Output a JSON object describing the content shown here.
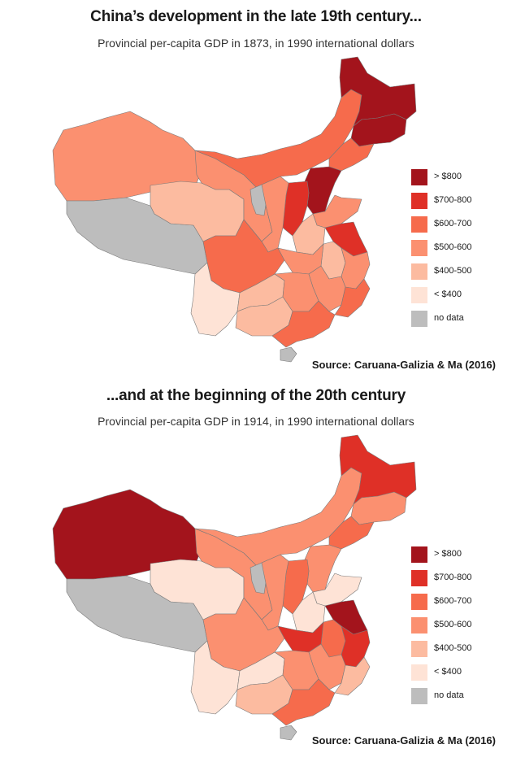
{
  "colors": {
    "gt800": "#a3141c",
    "r700_800": "#df3027",
    "r600_700": "#f66b4c",
    "r500_600": "#fb9070",
    "r400_500": "#fcbba0",
    "lt400": "#fee3d6",
    "no_data": "#bdbdbd",
    "border": "#7a7a7a"
  },
  "legend": [
    {
      "key": "gt800",
      "label": "> $800"
    },
    {
      "key": "r700_800",
      "label": "$700-800"
    },
    {
      "key": "r600_700",
      "label": "$600-700"
    },
    {
      "key": "r500_600",
      "label": "$500-600"
    },
    {
      "key": "r400_500",
      "label": "$400-500"
    },
    {
      "key": "lt400",
      "label": "< $400"
    },
    {
      "key": "no_data",
      "label": "no data"
    }
  ],
  "panels": [
    {
      "title": "China’s development in the late 19th century...",
      "subtitle": "Provincial per-capita GDP in 1873, in 1990 international dollars",
      "source": "Source: Caruana-Galizia & Ma (2016)",
      "regions": {
        "xinjiang": "r500_600",
        "tibet": "no_data",
        "qinghai": "r400_500",
        "gansu": "r500_600",
        "inner_mongolia": "r600_700",
        "heilongjiang": "gt800",
        "jilin": "gt800",
        "liaoning": "r600_700",
        "hebei": "gt800",
        "shanxi": "r700_800",
        "ningxia": "no_data",
        "shaanxi": "r500_600",
        "shandong": "r500_600",
        "henan": "r400_500",
        "jiangsu": "r700_800",
        "anhui": "r400_500",
        "zhejiang": "r500_600",
        "sichuan": "r600_700",
        "hubei": "r500_600",
        "jiangxi": "r500_600",
        "fujian": "r600_700",
        "yunnan": "lt400",
        "guizhou": "r400_500",
        "hunan": "r500_600",
        "guangxi": "r400_500",
        "guangdong": "r600_700",
        "hainan": "no_data"
      }
    },
    {
      "title": "...and at the beginning of the 20th century",
      "subtitle": "Provincial per-capita GDP in 1914, in 1990 international dollars",
      "source": "Source: Caruana-Galizia & Ma (2016)",
      "regions": {
        "xinjiang": "gt800",
        "tibet": "no_data",
        "qinghai": "lt400",
        "gansu": "r500_600",
        "inner_mongolia": "r500_600",
        "heilongjiang": "r700_800",
        "jilin": "r500_600",
        "liaoning": "r600_700",
        "hebei": "r500_600",
        "shanxi": "r600_700",
        "ningxia": "no_data",
        "shaanxi": "r500_600",
        "shandong": "lt400",
        "henan": "lt400",
        "jiangsu": "gt800",
        "anhui": "r600_700",
        "zhejiang": "r700_800",
        "sichuan": "r500_600",
        "hubei": "r700_800",
        "jiangxi": "r500_600",
        "fujian": "r400_500",
        "yunnan": "lt400",
        "guizhou": "lt400",
        "hunan": "r500_600",
        "guangxi": "r400_500",
        "guangdong": "r600_700",
        "hainan": "no_data"
      }
    }
  ]
}
